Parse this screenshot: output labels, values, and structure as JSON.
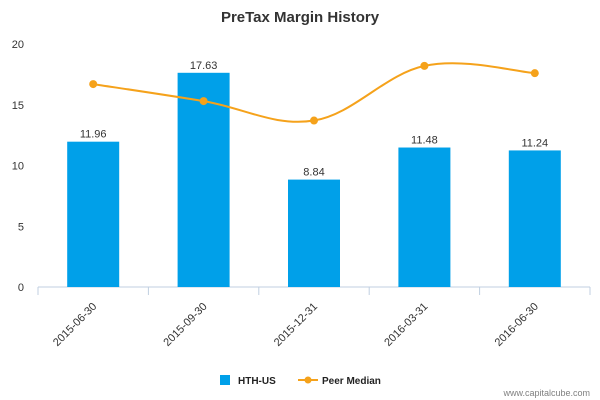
{
  "chart_data": {
    "type": "bar",
    "title": "PreTax Margin History",
    "categories": [
      "2015-06-30",
      "2015-09-30",
      "2015-12-31",
      "2016-03-31",
      "2016-06-30"
    ],
    "series": [
      {
        "name": "HTH-US",
        "kind": "bar",
        "color": "#00a0e9",
        "values": [
          11.96,
          17.63,
          8.84,
          11.48,
          11.24
        ],
        "labels": [
          "11.96",
          "17.63",
          "8.84",
          "11.48",
          "11.24"
        ]
      },
      {
        "name": "Peer Median",
        "kind": "line",
        "color": "#f5a21b",
        "values": [
          16.7,
          15.3,
          13.7,
          18.2,
          17.6
        ]
      }
    ],
    "yticks": [
      "0",
      "5",
      "10",
      "15",
      "20"
    ],
    "ylim": [
      0,
      20
    ],
    "xlabel": "",
    "ylabel": "",
    "grid": false,
    "legend": "bottom-center"
  },
  "watermark": "www.capitalcube.com"
}
